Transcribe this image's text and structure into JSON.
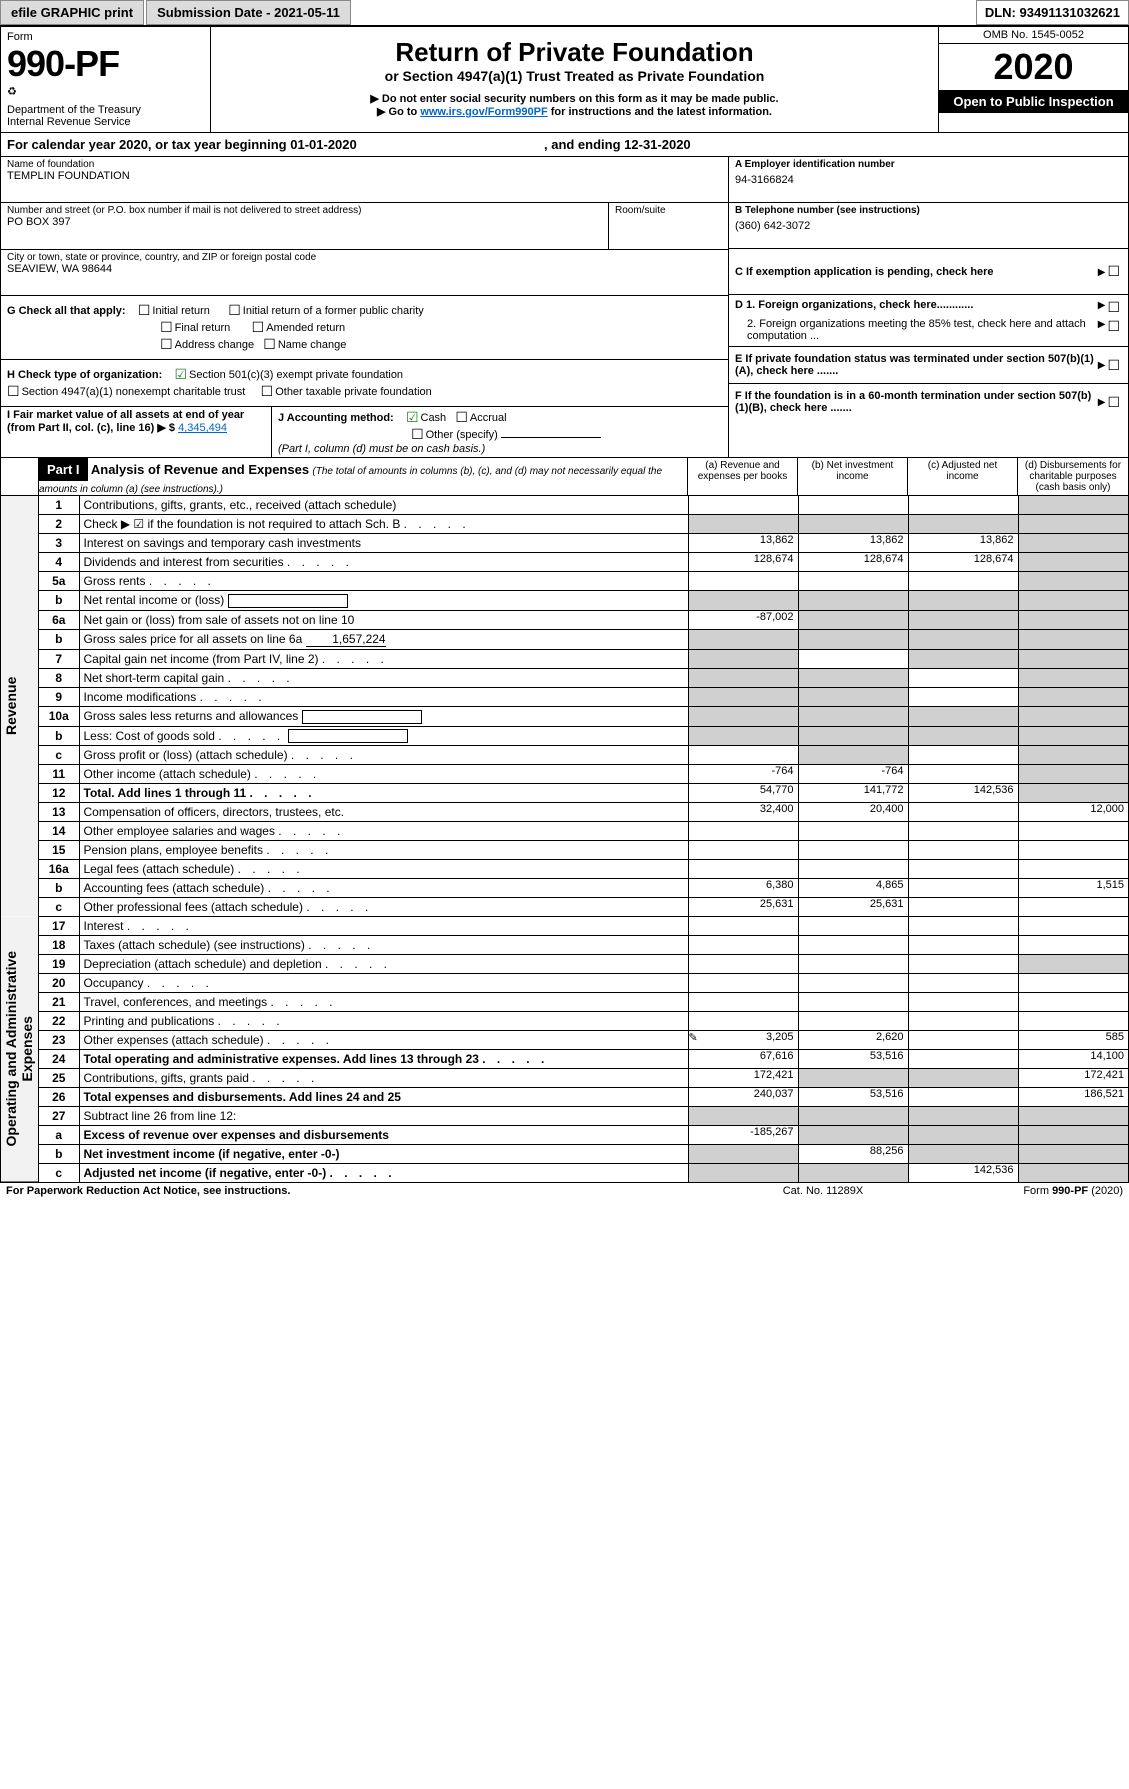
{
  "topbar": {
    "btn1": "efile GRAPHIC print",
    "btn2": "Submission Date - 2021-05-11",
    "dln": "DLN: 93491131032621"
  },
  "header": {
    "form_label": "Form",
    "form_no": "990-PF",
    "dept": "Department of the Treasury",
    "irs": "Internal Revenue Service",
    "title": "Return of Private Foundation",
    "subtitle": "or Section 4947(a)(1) Trust Treated as Private Foundation",
    "warn": "▶ Do not enter social security numbers on this form as it may be made public.",
    "goto_pre": "▶ Go to ",
    "goto_link": "www.irs.gov/Form990PF",
    "goto_post": " for instructions and the latest information.",
    "omb": "OMB No. 1545-0052",
    "year": "2020",
    "inspect": "Open to Public Inspection"
  },
  "calyear": {
    "text_pre": "For calendar year 2020, or tax year beginning ",
    "begin": "01-01-2020",
    "text_mid": " , and ending ",
    "end": "12-31-2020"
  },
  "entity": {
    "name_label": "Name of foundation",
    "name": "TEMPLIN FOUNDATION",
    "addr_label": "Number and street (or P.O. box number if mail is not delivered to street address)",
    "room_label": "Room/suite",
    "addr": "PO BOX 397",
    "city_label": "City or town, state or province, country, and ZIP or foreign postal code",
    "city": "SEAVIEW, WA  98644",
    "ein_label": "A Employer identification number",
    "ein": "94-3166824",
    "phone_label": "B Telephone number (see instructions)",
    "phone": "(360) 642-3072",
    "c_label": "C  If exemption application is pending, check here",
    "d1": "D 1. Foreign organizations, check here............",
    "d2": "2. Foreign organizations meeting the 85% test, check here and attach computation ...",
    "e_label": "E  If private foundation status was terminated under section 507(b)(1)(A), check here .......",
    "f_label": "F  If the foundation is in a 60-month termination under section 507(b)(1)(B), check here .......",
    "g_label": "G Check all that apply:",
    "g_opts": [
      "Initial return",
      "Final return",
      "Address change",
      "Initial return of a former public charity",
      "Amended return",
      "Name change"
    ],
    "h_label": "H Check type of organization:",
    "h1": "Section 501(c)(3) exempt private foundation",
    "h2": "Section 4947(a)(1) nonexempt charitable trust",
    "h3": "Other taxable private foundation",
    "i_label": "I Fair market value of all assets at end of year (from Part II, col. (c), line 16) ▶ $",
    "i_val": "4,345,494",
    "j_label": "J Accounting method:",
    "j_cash": "Cash",
    "j_accr": "Accrual",
    "j_other": "Other (specify)",
    "j_note": "(Part I, column (d) must be on cash basis.)"
  },
  "part1": {
    "hdr": "Part I",
    "title": "Analysis of Revenue and Expenses",
    "note": "(The total of amounts in columns (b), (c), and (d) may not necessarily equal the amounts in column (a) (see instructions).)",
    "col_a": "(a)  Revenue and expenses per books",
    "col_b": "(b)  Net investment income",
    "col_c": "(c)  Adjusted net income",
    "col_d": "(d)  Disbursements for charitable purposes (cash basis only)",
    "section_rev": "Revenue",
    "section_exp": "Operating and Administrative Expenses",
    "rows": [
      {
        "n": "1",
        "l": "Contributions, gifts, grants, etc., received (attach schedule)",
        "a": "",
        "b": "",
        "c": "",
        "d": "",
        "shade_d": true
      },
      {
        "n": "2",
        "l": "Check ▶ ☑ if the foundation is not required to attach Sch. B",
        "dots": true,
        "shade_all": true
      },
      {
        "n": "3",
        "l": "Interest on savings and temporary cash investments",
        "a": "13,862",
        "b": "13,862",
        "c": "13,862",
        "d": "",
        "shade_d": true
      },
      {
        "n": "4",
        "l": "Dividends and interest from securities",
        "dots": true,
        "a": "128,674",
        "b": "128,674",
        "c": "128,674",
        "d": "",
        "shade_d": true
      },
      {
        "n": "5a",
        "l": "Gross rents",
        "dots": true,
        "a": "",
        "b": "",
        "c": "",
        "d": "",
        "shade_d": true
      },
      {
        "n": "b",
        "l": "Net rental income or (loss)",
        "box": true,
        "shade_all": true
      },
      {
        "n": "6a",
        "l": "Net gain or (loss) from sale of assets not on line 10",
        "a": "-87,002",
        "shade_bcd": true
      },
      {
        "n": "b",
        "l": "Gross sales price for all assets on line 6a",
        "val": "1,657,224",
        "shade_all": true
      },
      {
        "n": "7",
        "l": "Capital gain net income (from Part IV, line 2)",
        "dots": true,
        "shade_a": true,
        "b": "",
        "shade_cd": true
      },
      {
        "n": "8",
        "l": "Net short-term capital gain",
        "dots": true,
        "shade_ab": true,
        "c": "",
        "shade_d": true
      },
      {
        "n": "9",
        "l": "Income modifications",
        "dots": true,
        "shade_ab": true,
        "c": "",
        "shade_d": true
      },
      {
        "n": "10a",
        "l": "Gross sales less returns and allowances",
        "box": true,
        "shade_all": true
      },
      {
        "n": "b",
        "l": "Less: Cost of goods sold",
        "dots": true,
        "box": true,
        "shade_all": true
      },
      {
        "n": "c",
        "l": "Gross profit or (loss) (attach schedule)",
        "dots": true,
        "a": "",
        "shade_b": true,
        "c": "",
        "shade_d": true
      },
      {
        "n": "11",
        "l": "Other income (attach schedule)",
        "dots": true,
        "a": "-764",
        "b": "-764",
        "c": "",
        "shade_d": true
      },
      {
        "n": "12",
        "l": "Total. Add lines 1 through 11",
        "bold": true,
        "dots": true,
        "a": "54,770",
        "b": "141,772",
        "c": "142,536",
        "shade_d": true
      },
      {
        "n": "13",
        "l": "Compensation of officers, directors, trustees, etc.",
        "a": "32,400",
        "b": "20,400",
        "c": "",
        "d": "12,000"
      },
      {
        "n": "14",
        "l": "Other employee salaries and wages",
        "dots": true,
        "a": "",
        "b": "",
        "c": "",
        "d": ""
      },
      {
        "n": "15",
        "l": "Pension plans, employee benefits",
        "dots": true,
        "a": "",
        "b": "",
        "c": "",
        "d": ""
      },
      {
        "n": "16a",
        "l": "Legal fees (attach schedule)",
        "dots": true,
        "a": "",
        "b": "",
        "c": "",
        "d": ""
      },
      {
        "n": "b",
        "l": "Accounting fees (attach schedule)",
        "dots": true,
        "a": "6,380",
        "b": "4,865",
        "c": "",
        "d": "1,515"
      },
      {
        "n": "c",
        "l": "Other professional fees (attach schedule)",
        "dots": true,
        "a": "25,631",
        "b": "25,631",
        "c": "",
        "d": ""
      },
      {
        "n": "17",
        "l": "Interest",
        "dots": true,
        "a": "",
        "b": "",
        "c": "",
        "d": ""
      },
      {
        "n": "18",
        "l": "Taxes (attach schedule) (see instructions)",
        "dots": true,
        "a": "",
        "b": "",
        "c": "",
        "d": ""
      },
      {
        "n": "19",
        "l": "Depreciation (attach schedule) and depletion",
        "dots": true,
        "a": "",
        "b": "",
        "c": "",
        "shade_d": true
      },
      {
        "n": "20",
        "l": "Occupancy",
        "dots": true,
        "a": "",
        "b": "",
        "c": "",
        "d": ""
      },
      {
        "n": "21",
        "l": "Travel, conferences, and meetings",
        "dots": true,
        "a": "",
        "b": "",
        "c": "",
        "d": ""
      },
      {
        "n": "22",
        "l": "Printing and publications",
        "dots": true,
        "a": "",
        "b": "",
        "c": "",
        "d": ""
      },
      {
        "n": "23",
        "l": "Other expenses (attach schedule)",
        "dots": true,
        "icon": true,
        "a": "3,205",
        "b": "2,620",
        "c": "",
        "d": "585"
      },
      {
        "n": "24",
        "l": "Total operating and administrative expenses. Add lines 13 through 23",
        "bold": true,
        "dots": true,
        "a": "67,616",
        "b": "53,516",
        "c": "",
        "d": "14,100"
      },
      {
        "n": "25",
        "l": "Contributions, gifts, grants paid",
        "dots": true,
        "a": "172,421",
        "shade_bc": true,
        "d": "172,421"
      },
      {
        "n": "26",
        "l": "Total expenses and disbursements. Add lines 24 and 25",
        "bold": true,
        "a": "240,037",
        "b": "53,516",
        "c": "",
        "d": "186,521"
      },
      {
        "n": "27",
        "l": "Subtract line 26 from line 12:",
        "shade_all": true
      },
      {
        "n": "a",
        "l": "Excess of revenue over expenses and disbursements",
        "bold": true,
        "a": "-185,267",
        "shade_bcd": true
      },
      {
        "n": "b",
        "l": "Net investment income (if negative, enter -0-)",
        "bold": true,
        "shade_a": true,
        "b": "88,256",
        "shade_cd": true
      },
      {
        "n": "c",
        "l": "Adjusted net income (if negative, enter -0-)",
        "bold": true,
        "dots": true,
        "shade_ab": true,
        "c": "142,536",
        "shade_d": true
      }
    ]
  },
  "footer": {
    "left": "For Paperwork Reduction Act Notice, see instructions.",
    "mid": "Cat. No. 11289X",
    "right": "Form 990-PF (2020)"
  }
}
